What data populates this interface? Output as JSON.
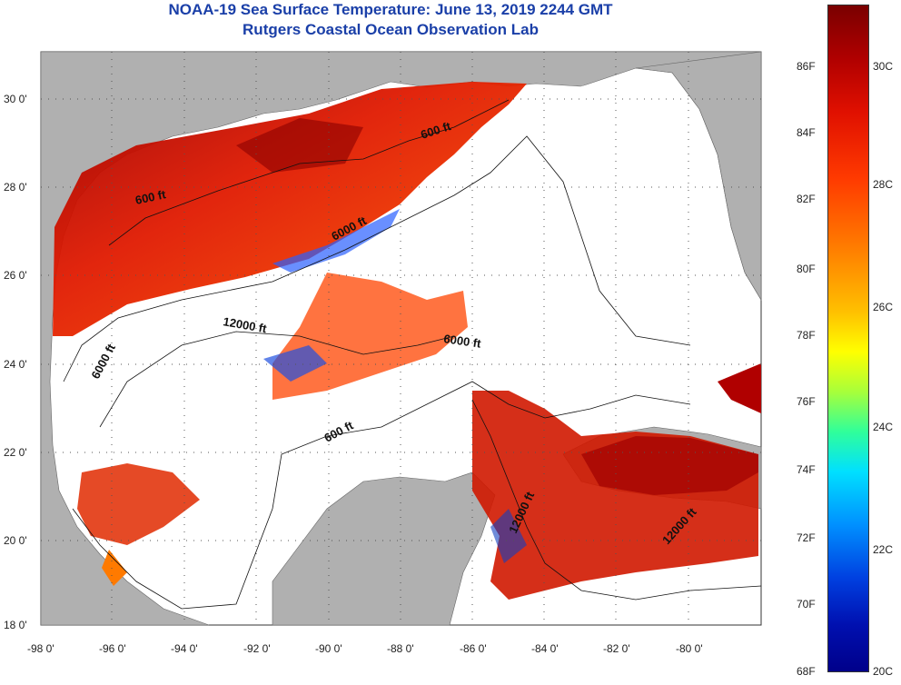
{
  "title": {
    "line1": "NOAA-19 Sea Surface Temperature:  June 13, 2019 2244 GMT",
    "line2": "Rutgers Coastal Ocean Observation Lab"
  },
  "axes": {
    "lat_labels": [
      "30 0'",
      "28 0'",
      "26 0'",
      "24 0'",
      "22 0'",
      "20 0'",
      "18 0'"
    ],
    "lon_labels": [
      "-98 0'",
      "-96 0'",
      "-94 0'",
      "-92 0'",
      "-90 0'",
      "-88 0'",
      "-86 0'",
      "-84 0'",
      "-82 0'",
      "-80 0'"
    ]
  },
  "contour_labels": [
    "600 ft",
    "600 ft",
    "6000 ft",
    "12000 ft",
    "6000 ft",
    "6000 ft",
    "600 ft",
    "12000 ft",
    "12000 ft"
  ],
  "colorbar": {
    "fahrenheit": [
      "86F",
      "84F",
      "82F",
      "80F",
      "78F",
      "76F",
      "74F",
      "72F",
      "70F",
      "68F"
    ],
    "celsius": [
      "30C",
      "28C",
      "26C",
      "24C",
      "22C",
      "20C"
    ]
  },
  "colors": {
    "land": "#b0b0b0",
    "water_nodata": "#ffffff",
    "title": "#1a3fa8"
  }
}
